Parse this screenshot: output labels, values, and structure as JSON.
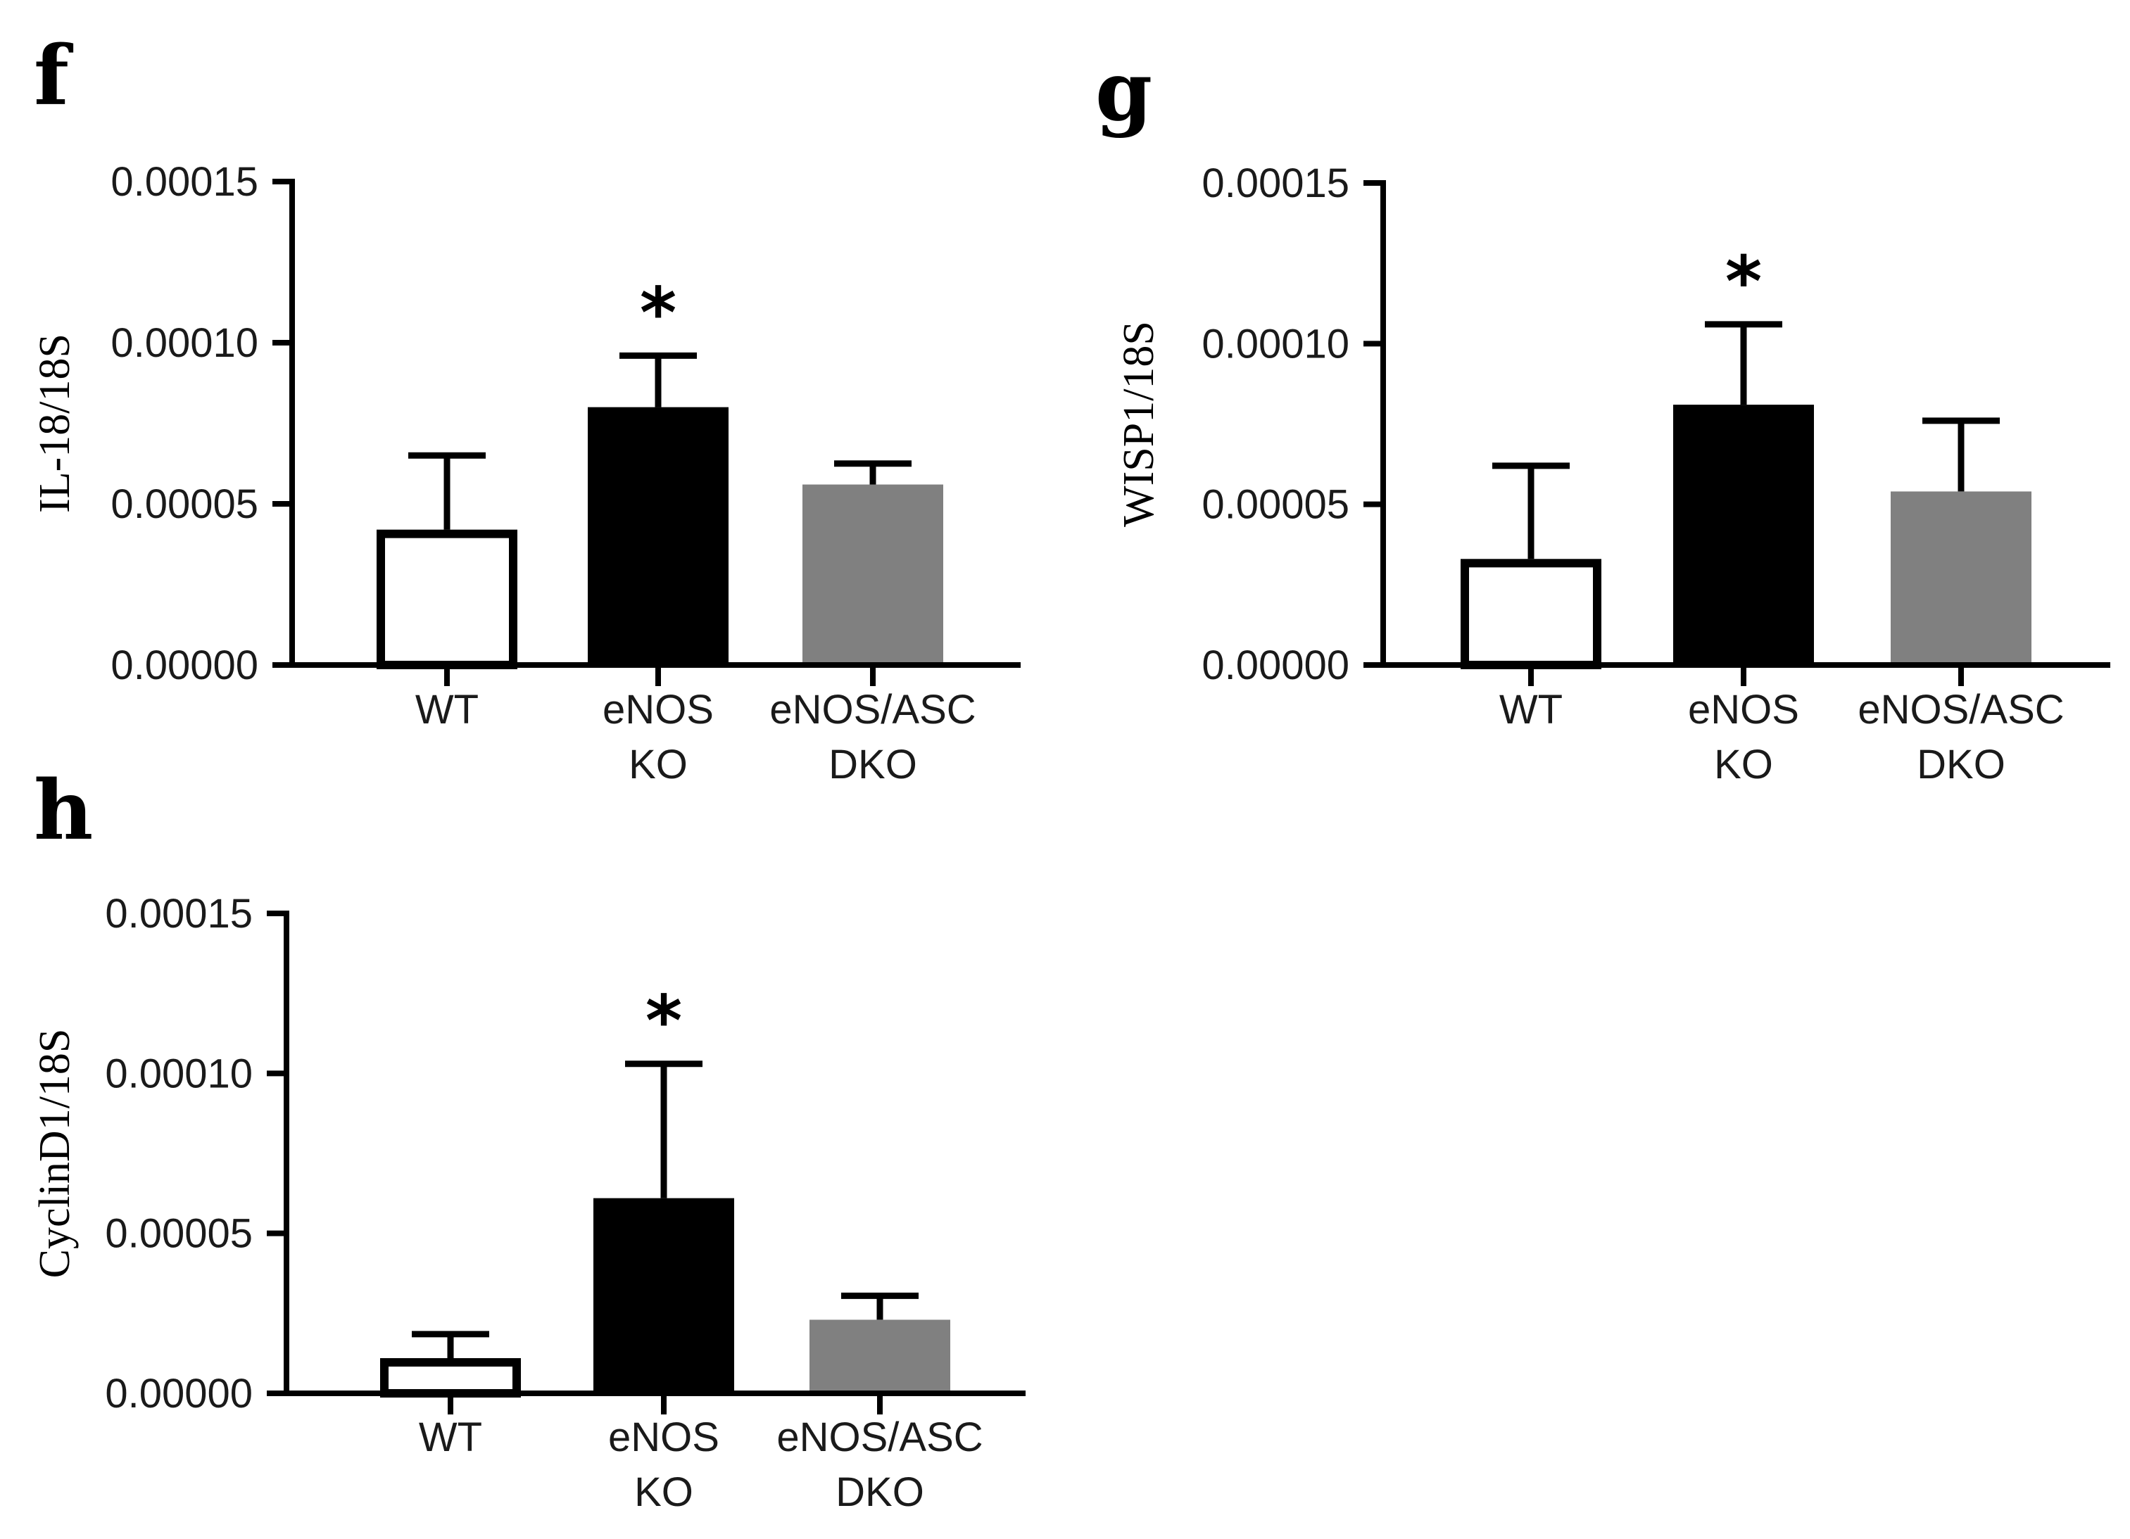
{
  "chart_data": [
    {
      "panel": "f",
      "type": "bar",
      "ylabel": "IL-18/18S",
      "xlabel": "",
      "ylim": [
        0,
        0.00015
      ],
      "yticks": [
        "0.00000",
        "0.00005",
        "0.00010",
        "0.00015"
      ],
      "ytick_values": [
        0,
        5e-05,
        0.0001,
        0.00015
      ],
      "categories": [
        [
          "WT"
        ],
        [
          "eNOS",
          "KO"
        ],
        [
          "eNOS/ASC",
          "DKO"
        ]
      ],
      "values": [
        4.2e-05,
        8e-05,
        5.6e-05
      ],
      "errors": [
        2.3e-05,
        1.6e-05,
        6.5e-06
      ],
      "significance": [
        "",
        "*",
        ""
      ],
      "bar_colors": [
        "#ffffff",
        "#000000",
        "#808080"
      ],
      "bar_outline": [
        true,
        false,
        false
      ]
    },
    {
      "panel": "g",
      "type": "bar",
      "ylabel": "WISP1/18S",
      "xlabel": "",
      "ylim": [
        0,
        0.00015
      ],
      "yticks": [
        "0.00000",
        "0.00005",
        "0.00010",
        "0.00015"
      ],
      "ytick_values": [
        0,
        5e-05,
        0.0001,
        0.00015
      ],
      "categories": [
        [
          "WT"
        ],
        [
          "eNOS",
          "KO"
        ],
        [
          "eNOS/ASC",
          "DKO"
        ]
      ],
      "values": [
        3.3e-05,
        8.1e-05,
        5.4e-05
      ],
      "errors": [
        2.9e-05,
        2.5e-05,
        2.2e-05
      ],
      "significance": [
        "",
        "*",
        ""
      ],
      "bar_colors": [
        "#ffffff",
        "#000000",
        "#808080"
      ],
      "bar_outline": [
        true,
        false,
        false
      ]
    },
    {
      "panel": "h",
      "type": "bar",
      "ylabel": "CyclinD1/18S",
      "xlabel": "",
      "ylim": [
        0,
        0.00015
      ],
      "yticks": [
        "0.00000",
        "0.00005",
        "0.00010",
        "0.00015"
      ],
      "ytick_values": [
        0,
        5e-05,
        0.0001,
        0.00015
      ],
      "categories": [
        [
          "WT"
        ],
        [
          "eNOS",
          "KO"
        ],
        [
          "eNOS/ASC",
          "DKO"
        ]
      ],
      "values": [
        1.1e-05,
        6.1e-05,
        2.3e-05
      ],
      "errors": [
        7.5e-06,
        4.2e-05,
        7.5e-06
      ],
      "significance": [
        "",
        "*",
        ""
      ],
      "bar_colors": [
        "#ffffff",
        "#000000",
        "#808080"
      ],
      "bar_outline": [
        true,
        false,
        false
      ]
    }
  ]
}
